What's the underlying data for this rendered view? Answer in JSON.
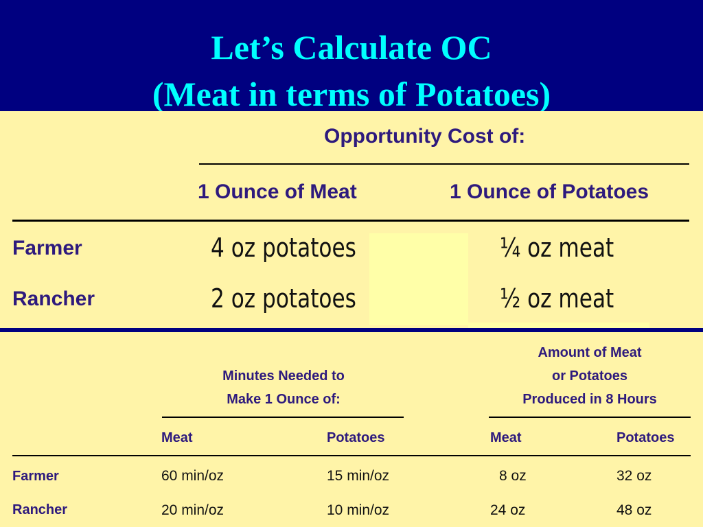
{
  "slide": {
    "title_line1": "Let’s Calculate OC",
    "title_line2": "(Meat in terms of Potatoes)"
  },
  "oc_table": {
    "heading": "Opportunity Cost of:",
    "col_meat": "1 Ounce of Meat",
    "col_potatoes": "1 Ounce of Potatoes",
    "rows": [
      {
        "label": "Farmer",
        "meat": "4 oz potatoes",
        "potatoes": "¼ oz meat"
      },
      {
        "label": "Rancher",
        "meat": "2 oz potatoes",
        "potatoes": "½ oz meat"
      }
    ]
  },
  "production_table": {
    "group1_line1": "Minutes Needed to",
    "group1_line2": "Make 1 Ounce of:",
    "group2_line1": "Amount of Meat",
    "group2_line2": "or Potatoes",
    "group2_line3": "Produced in 8 Hours",
    "sub_meat_1": "Meat",
    "sub_potatoes_1": "Potatoes",
    "sub_meat_2": "Meat",
    "sub_potatoes_2": "Potatoes",
    "rows": [
      {
        "label": "Farmer",
        "min_meat": "60 min/oz",
        "min_potatoes": "15 min/oz",
        "amt_meat": "8 oz",
        "amt_potatoes": "32 oz"
      },
      {
        "label": "Rancher",
        "min_meat": "20 min/oz",
        "min_potatoes": "10 min/oz",
        "amt_meat": "24 oz",
        "amt_potatoes": "48 oz"
      }
    ]
  }
}
